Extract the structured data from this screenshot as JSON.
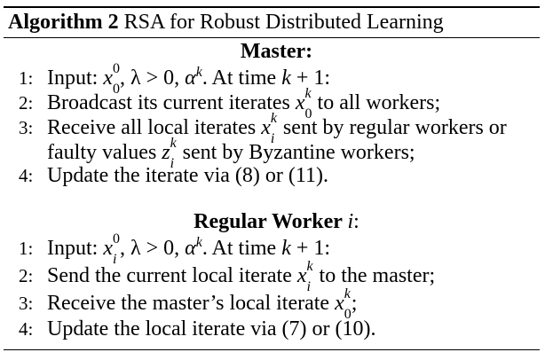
{
  "caption": {
    "label": "Algorithm 2",
    "title": "RSA for Robust Distributed Learning"
  },
  "master": {
    "heading": "Master:",
    "steps": [
      {
        "num": "1:",
        "parts": [
          "Input: ",
          "x",
          "0",
          "0",
          ", λ > 0, ",
          "α",
          "k",
          ". At time ",
          "k",
          " + 1:"
        ]
      },
      {
        "num": "2:",
        "parts": [
          "Broadcast its current iterates ",
          "x",
          "k",
          "0",
          " to all workers;"
        ]
      },
      {
        "num": "3:",
        "parts": [
          "Receive all local iterates ",
          "x",
          "k",
          "i",
          " sent by regular workers or"
        ]
      },
      {
        "num": "",
        "parts": [
          "faulty values ",
          "z",
          "k",
          "i",
          " sent by Byzantine workers;"
        ]
      },
      {
        "num": "4:",
        "parts": [
          "Update the iterate via (8) or (11)."
        ]
      }
    ]
  },
  "worker": {
    "heading": "Regular Worker",
    "heading_var": "i",
    "heading_colon": ":",
    "steps": [
      {
        "num": "1:",
        "parts": [
          "Input: ",
          "x",
          "0",
          "i",
          ", λ > 0, ",
          "α",
          "k",
          ". At time ",
          "k",
          " + 1:"
        ]
      },
      {
        "num": "2:",
        "parts": [
          "Send the current local iterate ",
          "x",
          "k",
          "i",
          " to the master;"
        ]
      },
      {
        "num": "3:",
        "parts": [
          "Receive the master’s local iterate ",
          "x",
          "k",
          "0",
          ";"
        ]
      },
      {
        "num": "4:",
        "parts": [
          "Update the local iterate via (7) or (10)."
        ]
      }
    ]
  }
}
